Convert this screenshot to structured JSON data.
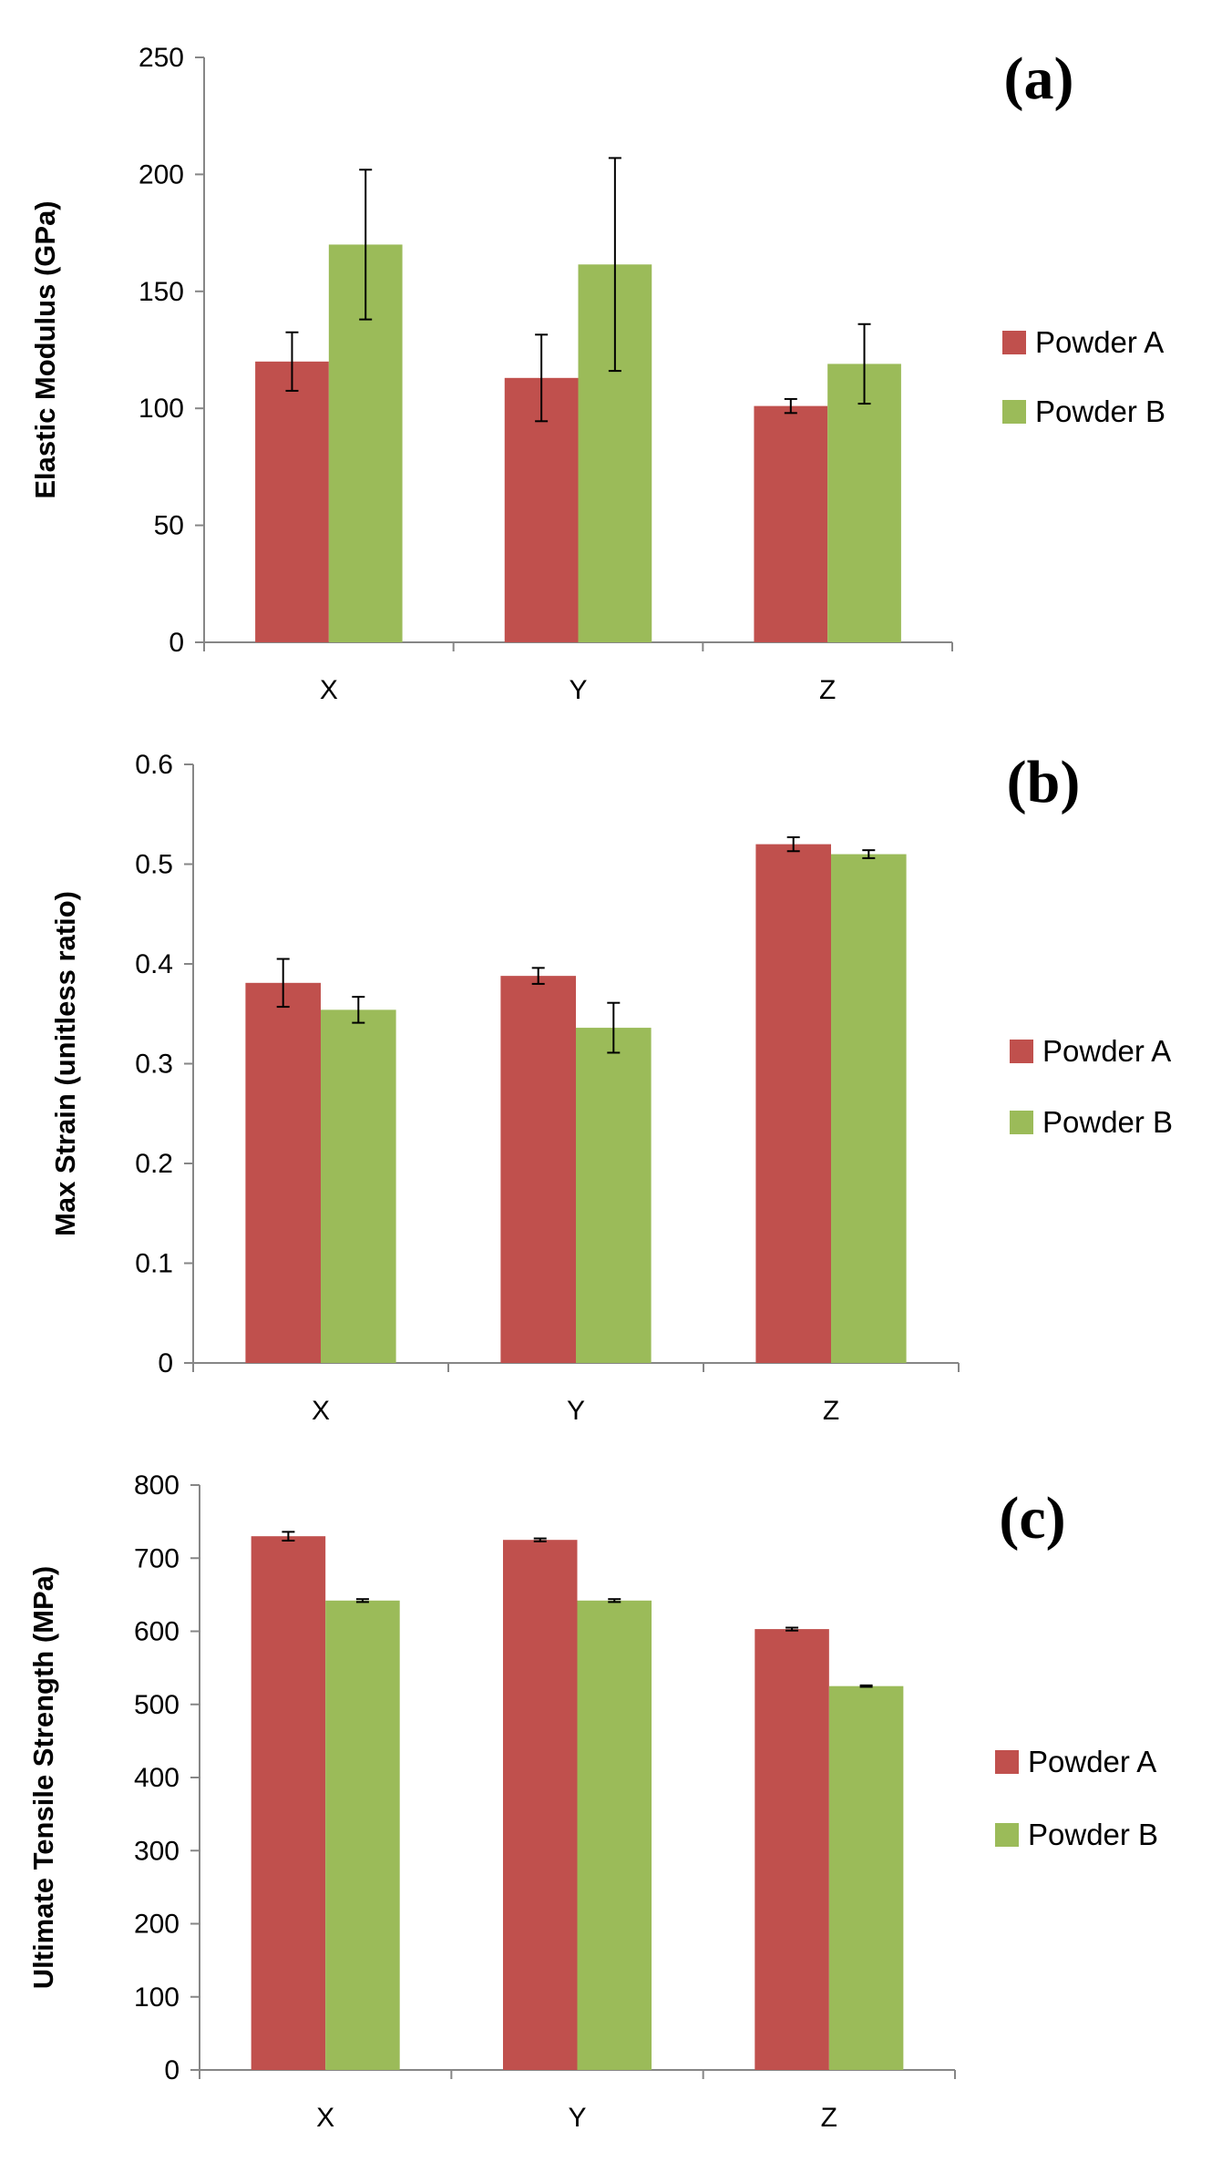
{
  "colors": {
    "powder_a": "#c0504d",
    "powder_b": "#9bbb59"
  },
  "chart_data": [
    {
      "type": "bar",
      "panel_label": "(a)",
      "title": "",
      "xlabel": "",
      "ylabel": "Elastic Modulus (GPa)",
      "ylim": [
        0,
        250
      ],
      "yticks": [
        0,
        50,
        100,
        150,
        200,
        250
      ],
      "ytick_labels": [
        "0",
        "50",
        "100",
        "150",
        "200",
        "250"
      ],
      "categories": [
        "X",
        "Y",
        "Z"
      ],
      "legend": [
        "Powder A",
        "Powder B"
      ],
      "legend_position": "right",
      "series": [
        {
          "name": "Powder A",
          "values": [
            120,
            113,
            101
          ],
          "errors": [
            12.5,
            18.5,
            3
          ]
        },
        {
          "name": "Powder B",
          "values": [
            170,
            161.5,
            119
          ],
          "errors": [
            32,
            45.5,
            17
          ]
        }
      ]
    },
    {
      "type": "bar",
      "panel_label": "(b)",
      "title": "",
      "xlabel": "",
      "ylabel": "Max Strain (unitless ratio)",
      "ylim": [
        0,
        0.6
      ],
      "yticks": [
        0,
        0.1,
        0.2,
        0.3,
        0.4,
        0.5,
        0.6
      ],
      "ytick_labels": [
        "0",
        "0.1",
        "0.2",
        "0.3",
        "0.4",
        "0.5",
        "0.6"
      ],
      "categories": [
        "X",
        "Y",
        "Z"
      ],
      "legend": [
        "Powder A",
        "Powder B"
      ],
      "legend_position": "right",
      "series": [
        {
          "name": "Powder A",
          "values": [
            0.381,
            0.388,
            0.52
          ],
          "errors": [
            0.024,
            0.008,
            0.007
          ]
        },
        {
          "name": "Powder B",
          "values": [
            0.354,
            0.336,
            0.51
          ],
          "errors": [
            0.013,
            0.025,
            0.004
          ]
        }
      ]
    },
    {
      "type": "bar",
      "panel_label": "(c)",
      "title": "",
      "xlabel": "",
      "ylabel": "Ultimate Tensile Strength (MPa)",
      "ylim": [
        0,
        800
      ],
      "yticks": [
        0,
        100,
        200,
        300,
        400,
        500,
        600,
        700,
        800
      ],
      "ytick_labels": [
        "0",
        "100",
        "200",
        "300",
        "400",
        "500",
        "600",
        "700",
        "800"
      ],
      "categories": [
        "X",
        "Y",
        "Z"
      ],
      "legend": [
        "Powder A",
        "Powder B"
      ],
      "legend_position": "right",
      "series": [
        {
          "name": "Powder A",
          "values": [
            730,
            725,
            603
          ],
          "errors": [
            6,
            2,
            2
          ]
        },
        {
          "name": "Powder B",
          "values": [
            642,
            642,
            525
          ],
          "errors": [
            2,
            2,
            1
          ]
        }
      ]
    }
  ]
}
